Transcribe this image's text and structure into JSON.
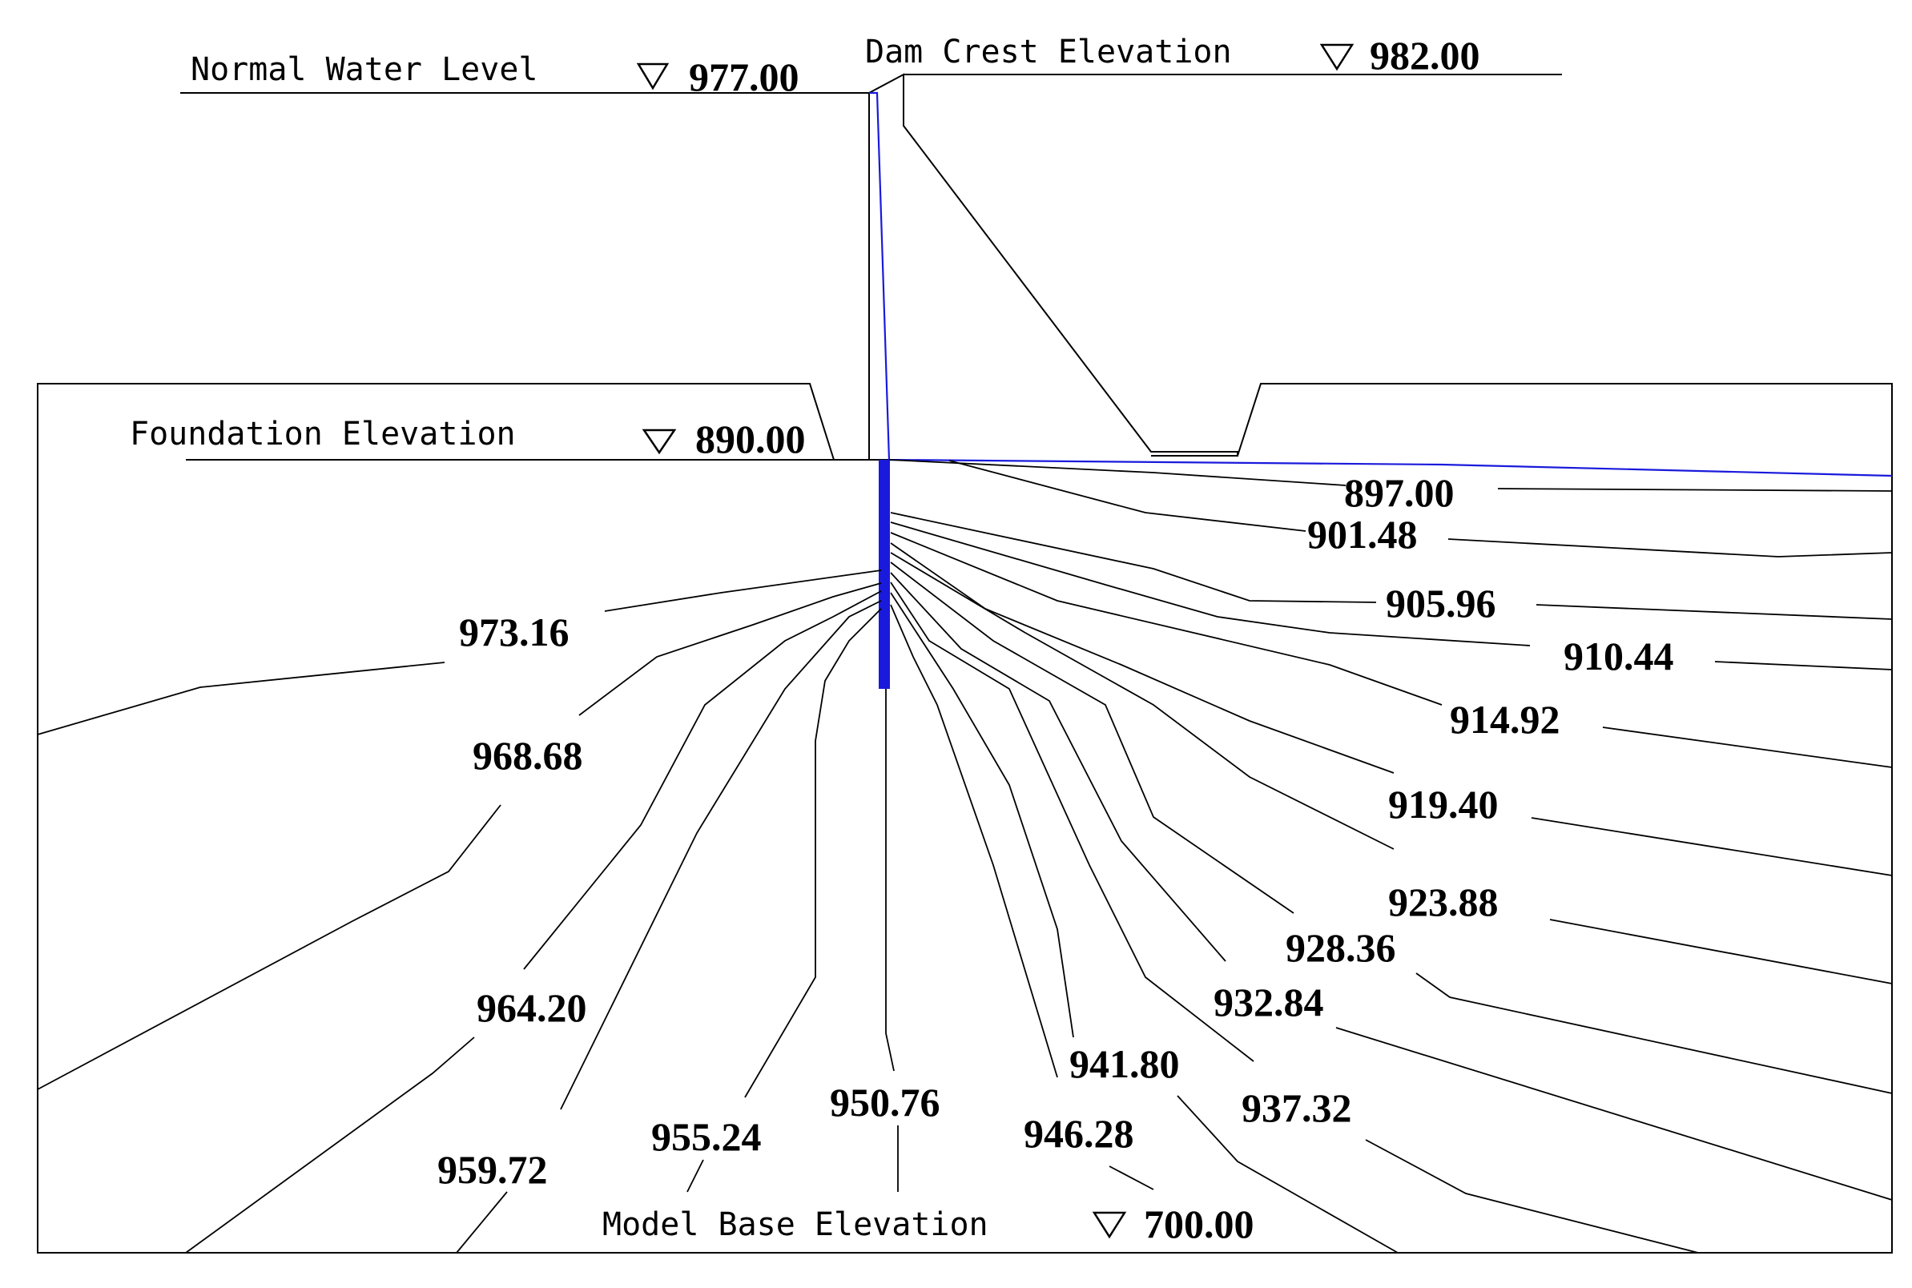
{
  "labels": {
    "normal_water_level": "Normal Water Level",
    "normal_water_level_value": "977.00",
    "dam_crest_elevation": "Dam Crest Elevation",
    "dam_crest_elevation_value": "982.00",
    "foundation_elevation": "Foundation Elevation",
    "foundation_elevation_value": "890.00",
    "model_base_elevation": "Model Base Elevation",
    "model_base_elevation_value": "700.00"
  },
  "contours": [
    "897.00",
    "901.48",
    "905.96",
    "910.44",
    "914.92",
    "919.40",
    "923.88",
    "928.36",
    "932.84",
    "937.32",
    "941.80",
    "946.28",
    "950.76",
    "955.24",
    "959.72",
    "964.20",
    "968.68",
    "973.16"
  ],
  "colors": {
    "line": "#000000",
    "phreatic_line": "#1a1adc",
    "cutoff_wall": "#1a1adc"
  }
}
